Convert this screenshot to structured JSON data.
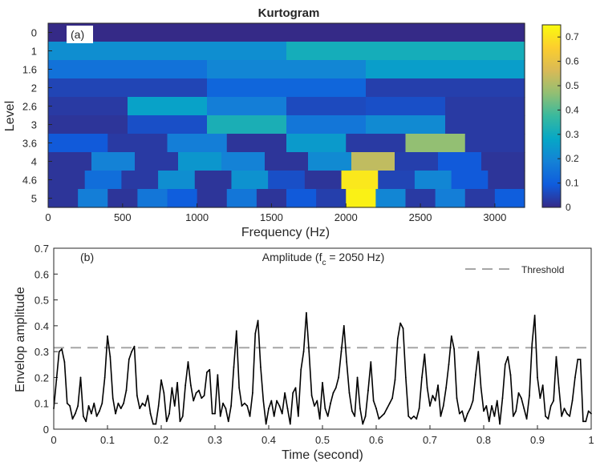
{
  "chart_data": [
    {
      "type": "heatmap",
      "title": "Kurtogram",
      "panel_label": "(a)",
      "xlabel": "Frequency (Hz)",
      "ylabel": "Level",
      "xlim": [
        0,
        3200
      ],
      "xticks": [
        0,
        500,
        1000,
        1500,
        2000,
        2500,
        3000
      ],
      "levels": [
        "0",
        "1",
        "1.6",
        "2",
        "2.6",
        "3",
        "3.6",
        "4",
        "4.6",
        "5"
      ],
      "colorbar": {
        "min": 0,
        "max": 0.75,
        "ticks": [
          0,
          0.1,
          0.2,
          0.3,
          0.4,
          0.5,
          0.6,
          0.7
        ]
      },
      "cells": [
        [
          0.0
        ],
        [
          0.22,
          0.31
        ],
        [
          0.15,
          0.2,
          0.26
        ],
        [
          0.05,
          0.12,
          0.04
        ],
        [
          0.03,
          0.27,
          0.18,
          0.06,
          0.07,
          0.03
        ],
        [
          0.02,
          0.07,
          0.32,
          0.16,
          0.21,
          0.03
        ],
        [
          0.09,
          0.03,
          0.18,
          0.02,
          0.25,
          0.03,
          0.47,
          0.03
        ],
        [
          0.02,
          0.19,
          0.03,
          0.24,
          0.19,
          0.02,
          0.21,
          0.53,
          0.04,
          0.09,
          0.02
        ],
        [
          0.02,
          0.14,
          0.03,
          0.22,
          0.02,
          0.23,
          0.07,
          0.02,
          0.71,
          0.05,
          0.2,
          0.09,
          0.02
        ],
        [
          0.02,
          0.18,
          0.02,
          0.16,
          0.1,
          0.02,
          0.16,
          0.02,
          0.09,
          0.04,
          0.73,
          0.2,
          0.03,
          0.18,
          0.03,
          0.1
        ]
      ]
    },
    {
      "type": "line",
      "panel_label": "(b)",
      "title_prefix": "Amplitude (f",
      "title_sub": "c",
      "title_suffix": " = 2050 Hz)",
      "xlabel": "Time (second)",
      "ylabel": "Envelop amplitude",
      "xlim": [
        0,
        1
      ],
      "ylim": [
        0,
        0.7
      ],
      "xticks": [
        0,
        0.1,
        0.2,
        0.3,
        0.4,
        0.5,
        0.6,
        0.7,
        0.8,
        0.9,
        1
      ],
      "yticks": [
        0,
        0.1,
        0.2,
        0.3,
        0.4,
        0.5,
        0.6,
        0.7
      ],
      "threshold": {
        "name": "Threshold",
        "value": 0.315,
        "color": "#a6a6a6"
      },
      "series": [
        {
          "color": "#000000",
          "x": [
            0.0,
            0.005,
            0.01,
            0.015,
            0.02,
            0.025,
            0.03,
            0.035,
            0.04,
            0.045,
            0.05,
            0.055,
            0.06,
            0.065,
            0.07,
            0.075,
            0.08,
            0.085,
            0.09,
            0.095,
            0.1,
            0.105,
            0.11,
            0.115,
            0.12,
            0.125,
            0.13,
            0.135,
            0.14,
            0.145,
            0.15,
            0.155,
            0.16,
            0.165,
            0.17,
            0.175,
            0.18,
            0.185,
            0.19,
            0.195,
            0.2,
            0.205,
            0.21,
            0.215,
            0.22,
            0.225,
            0.23,
            0.235,
            0.24,
            0.245,
            0.25,
            0.255,
            0.26,
            0.265,
            0.27,
            0.275,
            0.28,
            0.285,
            0.29,
            0.295,
            0.3,
            0.305,
            0.31,
            0.315,
            0.32,
            0.325,
            0.33,
            0.335,
            0.34,
            0.345,
            0.35,
            0.355,
            0.36,
            0.365,
            0.37,
            0.375,
            0.38,
            0.385,
            0.39,
            0.395,
            0.4,
            0.405,
            0.41,
            0.415,
            0.42,
            0.425,
            0.43,
            0.435,
            0.44,
            0.445,
            0.45,
            0.455,
            0.46,
            0.465,
            0.47,
            0.475,
            0.48,
            0.485,
            0.49,
            0.495,
            0.5,
            0.505,
            0.51,
            0.515,
            0.52,
            0.525,
            0.53,
            0.535,
            0.54,
            0.545,
            0.55,
            0.555,
            0.56,
            0.565,
            0.57,
            0.575,
            0.58,
            0.585,
            0.59,
            0.595,
            0.6,
            0.605,
            0.61,
            0.615,
            0.62,
            0.625,
            0.63,
            0.635,
            0.64,
            0.645,
            0.65,
            0.655,
            0.66,
            0.665,
            0.67,
            0.675,
            0.68,
            0.685,
            0.69,
            0.695,
            0.7,
            0.705,
            0.71,
            0.715,
            0.72,
            0.725,
            0.73,
            0.735,
            0.74,
            0.745,
            0.75,
            0.755,
            0.76,
            0.765,
            0.77,
            0.775,
            0.78,
            0.785,
            0.79,
            0.795,
            0.8,
            0.805,
            0.81,
            0.815,
            0.82,
            0.825,
            0.83,
            0.835,
            0.84,
            0.845,
            0.85,
            0.855,
            0.86,
            0.865,
            0.87,
            0.875,
            0.88,
            0.885,
            0.89,
            0.895,
            0.9,
            0.905,
            0.91,
            0.915,
            0.92,
            0.925,
            0.93,
            0.935,
            0.94,
            0.945,
            0.95,
            0.955,
            0.96,
            0.965,
            0.97,
            0.975,
            0.98,
            0.985,
            0.99,
            0.995,
            1.0
          ],
          "y": [
            0.08,
            0.19,
            0.3,
            0.31,
            0.26,
            0.1,
            0.09,
            0.04,
            0.06,
            0.09,
            0.2,
            0.05,
            0.03,
            0.09,
            0.06,
            0.1,
            0.05,
            0.07,
            0.1,
            0.2,
            0.36,
            0.28,
            0.12,
            0.06,
            0.1,
            0.08,
            0.1,
            0.15,
            0.27,
            0.3,
            0.32,
            0.13,
            0.08,
            0.1,
            0.09,
            0.13,
            0.06,
            0.02,
            0.02,
            0.09,
            0.19,
            0.14,
            0.03,
            0.06,
            0.16,
            0.09,
            0.18,
            0.03,
            0.05,
            0.17,
            0.26,
            0.17,
            0.11,
            0.14,
            0.15,
            0.12,
            0.13,
            0.22,
            0.23,
            0.06,
            0.06,
            0.21,
            0.05,
            0.1,
            0.08,
            0.03,
            0.09,
            0.24,
            0.38,
            0.16,
            0.09,
            0.1,
            0.09,
            0.05,
            0.14,
            0.37,
            0.42,
            0.24,
            0.11,
            0.02,
            0.08,
            0.11,
            0.05,
            0.11,
            0.09,
            0.06,
            0.14,
            0.08,
            0.02,
            0.14,
            0.16,
            0.05,
            0.23,
            0.3,
            0.45,
            0.3,
            0.13,
            0.09,
            0.11,
            0.04,
            0.18,
            0.08,
            0.05,
            0.1,
            0.14,
            0.16,
            0.2,
            0.3,
            0.4,
            0.26,
            0.14,
            0.07,
            0.05,
            0.2,
            0.08,
            0.02,
            0.05,
            0.15,
            0.26,
            0.11,
            0.08,
            0.04,
            0.05,
            0.06,
            0.08,
            0.1,
            0.12,
            0.19,
            0.35,
            0.41,
            0.39,
            0.2,
            0.05,
            0.04,
            0.05,
            0.04,
            0.08,
            0.2,
            0.29,
            0.16,
            0.09,
            0.13,
            0.11,
            0.17,
            0.05,
            0.09,
            0.16,
            0.25,
            0.36,
            0.31,
            0.12,
            0.06,
            0.07,
            0.03,
            0.06,
            0.08,
            0.11,
            0.21,
            0.3,
            0.16,
            0.07,
            0.09,
            0.03,
            0.09,
            0.05,
            0.11,
            0.02,
            0.12,
            0.25,
            0.28,
            0.21,
            0.05,
            0.07,
            0.14,
            0.12,
            0.08,
            0.04,
            0.13,
            0.33,
            0.44,
            0.2,
            0.12,
            0.17,
            0.05,
            0.04,
            0.09,
            0.11,
            0.28,
            0.16,
            0.05,
            0.08,
            0.06,
            0.05,
            0.11,
            0.2,
            0.27,
            0.27,
            0.03,
            0.03,
            0.07,
            0.06
          ]
        }
      ]
    }
  ]
}
